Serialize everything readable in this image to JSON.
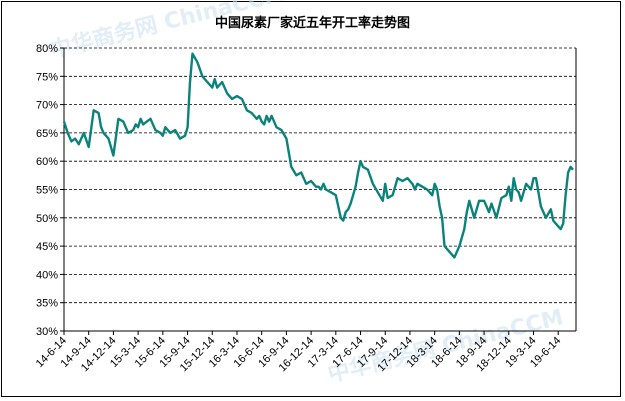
{
  "chart_data": {
    "type": "line",
    "title": "中国尿素厂家近五年开工率走势图",
    "xlabel": "",
    "ylabel": "",
    "ylim": [
      30,
      80
    ],
    "ytick_labels": [
      "30%",
      "35%",
      "40%",
      "45%",
      "50%",
      "55%",
      "60%",
      "65%",
      "70%",
      "75%",
      "80%"
    ],
    "xtick_labels": [
      "14-6-14",
      "14-9-14",
      "14-12-14",
      "15-3-14",
      "15-6-14",
      "15-9-14",
      "15-12-14",
      "16-3-14",
      "16-6-14",
      "16-9-14",
      "16-12-14",
      "17-3-14",
      "17-6-14",
      "17-9-14",
      "17-12-14",
      "18-3-14",
      "18-6-14",
      "18-9-14",
      "18-12-14",
      "19-3-14",
      "19-6-14"
    ],
    "grid": true,
    "legend": "none",
    "line_color": "#0b837b",
    "series": [
      {
        "x": [
          0,
          0.15,
          0.3,
          0.45,
          0.6,
          0.8,
          1.0,
          1.2,
          1.4,
          1.5,
          1.6,
          1.8,
          2.0,
          2.2,
          2.4,
          2.6,
          2.8,
          2.9,
          3.0,
          3.1,
          3.2,
          3.35,
          3.5,
          3.7,
          3.9,
          4.0,
          4.1,
          4.3,
          4.5,
          4.7,
          4.9,
          5.0,
          5.05,
          5.1,
          5.2,
          5.4,
          5.6,
          5.8,
          6.0,
          6.1,
          6.2,
          6.4,
          6.6,
          6.8,
          7.0,
          7.2,
          7.4,
          7.6,
          7.8,
          7.9,
          8.0,
          8.1,
          8.2,
          8.3,
          8.4,
          8.6,
          8.8,
          9.0,
          9.2,
          9.4,
          9.6,
          9.8,
          10.0,
          10.2,
          10.3,
          10.4,
          10.5,
          10.6,
          10.8,
          11.0,
          11.2,
          11.3,
          11.4,
          11.5,
          11.6,
          11.8,
          11.9,
          12.0,
          12.1,
          12.3,
          12.5,
          12.7,
          12.9,
          13.0,
          13.1,
          13.3,
          13.5,
          13.7,
          13.9,
          14.0,
          14.1,
          14.2,
          14.3,
          14.5,
          14.7,
          14.9,
          15.0,
          15.1,
          15.2,
          15.3,
          15.4,
          15.6,
          15.8,
          16.0,
          16.2,
          16.3,
          16.4,
          16.6,
          16.8,
          17.0,
          17.2,
          17.3,
          17.5,
          17.7,
          17.9,
          18.0,
          18.1,
          18.2,
          18.3,
          18.4,
          18.5,
          18.7,
          18.9,
          19.0,
          19.1,
          19.3,
          19.5,
          19.7,
          19.8,
          19.9,
          20.0,
          20.1,
          20.2,
          20.3,
          20.4,
          20.5,
          20.6
        ],
        "y": [
          67.0,
          65.0,
          63.5,
          64.0,
          63.0,
          65.0,
          62.5,
          69.0,
          68.5,
          66.0,
          65.0,
          64.0,
          61.0,
          67.5,
          67.0,
          65.0,
          65.5,
          66.5,
          66.0,
          67.5,
          66.5,
          67.0,
          67.5,
          65.5,
          65.0,
          64.5,
          66.0,
          65.0,
          65.5,
          64.0,
          64.5,
          66.0,
          70.0,
          74.0,
          79.0,
          77.5,
          75.0,
          74.0,
          73.0,
          74.5,
          73.0,
          74.0,
          72.0,
          71.0,
          71.5,
          71.0,
          69.0,
          68.5,
          67.5,
          68.0,
          67.0,
          66.5,
          68.0,
          67.0,
          68.0,
          66.0,
          65.5,
          64.0,
          59.0,
          57.5,
          58.0,
          56.0,
          56.5,
          55.5,
          55.5,
          55.0,
          56.0,
          55.0,
          54.5,
          54.0,
          50.0,
          49.5,
          51.0,
          51.5,
          52.5,
          55.5,
          58.0,
          60.0,
          59.0,
          58.5,
          56.0,
          54.5,
          53.0,
          56.0,
          53.5,
          54.0,
          57.0,
          56.5,
          57.0,
          56.5,
          56.0,
          55.0,
          56.0,
          55.5,
          55.0,
          54.0,
          56.0,
          55.0,
          52.0,
          50.0,
          45.0,
          44.0,
          43.0,
          45.0,
          48.0,
          51.0,
          53.0,
          50.0,
          53.0,
          53.0,
          51.0,
          52.5,
          50.0,
          53.5,
          54.0,
          55.5,
          53.0,
          57.0,
          55.0,
          54.5,
          53.0,
          56.0,
          55.0,
          57.0,
          57.0,
          52.0,
          50.0,
          51.5,
          49.5,
          49.0,
          48.5,
          48.0,
          49.0,
          54.0,
          58.0,
          59.0,
          58.5
        ]
      }
    ]
  },
  "watermark_text": "中华商务网 ChinaCCM"
}
